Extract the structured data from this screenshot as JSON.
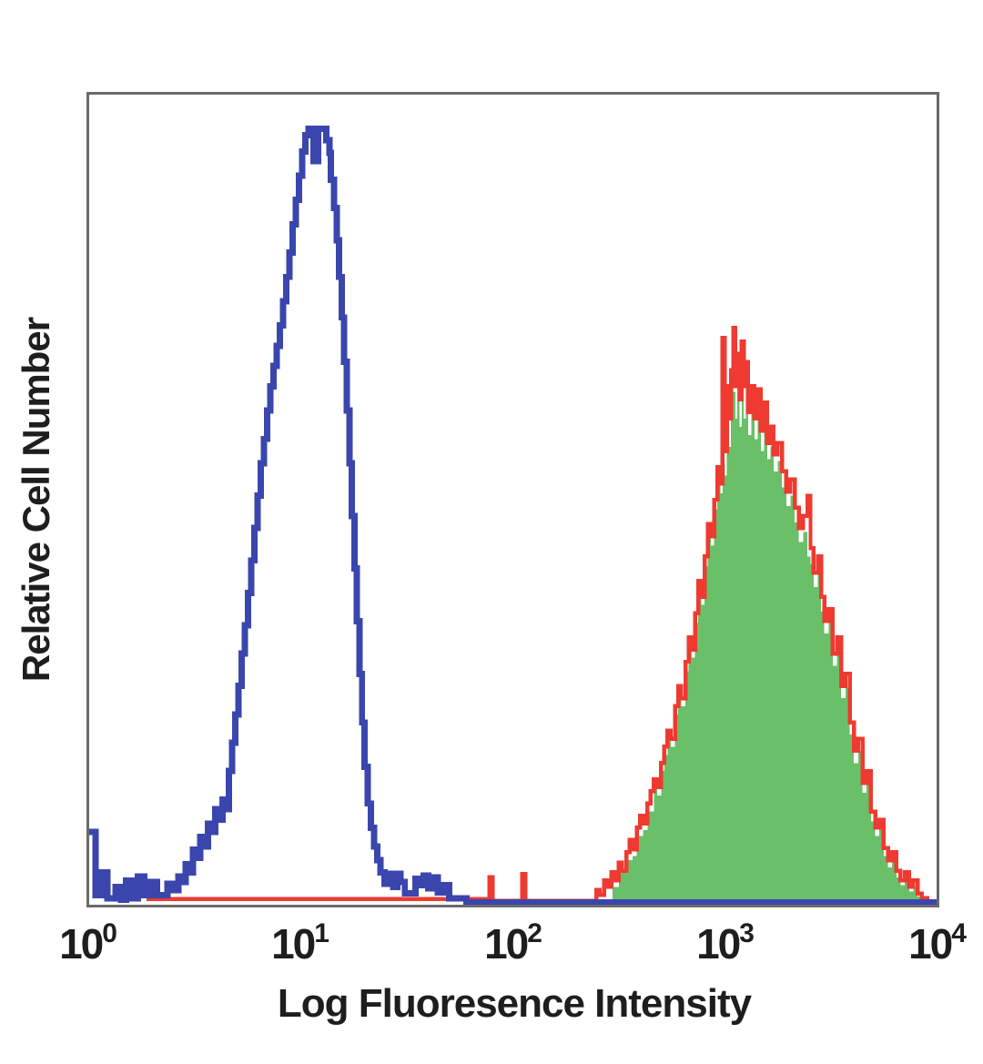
{
  "figure": {
    "background": "#ffffff",
    "frame_color": "#6a6a6a"
  },
  "chart_data": {
    "type": "area",
    "subtype": "flow-cytometry-overlaid-histograms",
    "title": "",
    "xlabel": "Log Fluoresence Intensity",
    "ylabel": "Relative Cell Number",
    "x_scale": "log10",
    "x_range_log": [
      0,
      4
    ],
    "y_range": [
      0,
      1
    ],
    "grid": false,
    "legend": "none",
    "x_ticks": [
      {
        "base": "10",
        "exp": "0",
        "log": 0
      },
      {
        "base": "10",
        "exp": "1",
        "log": 1
      },
      {
        "base": "10",
        "exp": "2",
        "log": 2
      },
      {
        "base": "10",
        "exp": "3",
        "log": 3
      },
      {
        "base": "10",
        "exp": "4",
        "log": 4
      }
    ],
    "series": [
      {
        "name": "positive-stain-fill",
        "style": "filled-step-area",
        "fill_color": "#6abf69",
        "peak_log_x": 3.06,
        "peak_height": 0.64,
        "points": [
          [
            2.44,
            0.003
          ],
          [
            2.47,
            0.022
          ],
          [
            2.5,
            0.04
          ],
          [
            2.535,
            0.055
          ],
          [
            2.565,
            0.06
          ],
          [
            2.585,
            0.085
          ],
          [
            2.615,
            0.092
          ],
          [
            2.635,
            0.115
          ],
          [
            2.665,
            0.145
          ],
          [
            2.68,
            0.135
          ],
          [
            2.7,
            0.165
          ],
          [
            2.715,
            0.185
          ],
          [
            2.73,
            0.205
          ],
          [
            2.745,
            0.195
          ],
          [
            2.765,
            0.235
          ],
          [
            2.78,
            0.258
          ],
          [
            2.795,
            0.245
          ],
          [
            2.815,
            0.288
          ],
          [
            2.83,
            0.318
          ],
          [
            2.845,
            0.305
          ],
          [
            2.86,
            0.348
          ],
          [
            2.875,
            0.388
          ],
          [
            2.89,
            0.37
          ],
          [
            2.905,
            0.418
          ],
          [
            2.92,
            0.458
          ],
          [
            2.935,
            0.443
          ],
          [
            2.95,
            0.488
          ],
          [
            2.965,
            0.528
          ],
          [
            2.98,
            0.508
          ],
          [
            2.99,
            0.545
          ],
          [
            3.0,
            0.53
          ],
          [
            3.01,
            0.585
          ],
          [
            3.02,
            0.565
          ],
          [
            3.03,
            0.61
          ],
          [
            3.04,
            0.633
          ],
          [
            3.05,
            0.6
          ],
          [
            3.06,
            0.64
          ],
          [
            3.07,
            0.59
          ],
          [
            3.08,
            0.635
          ],
          [
            3.09,
            0.6
          ],
          [
            3.1,
            0.625
          ],
          [
            3.11,
            0.58
          ],
          [
            3.125,
            0.61
          ],
          [
            3.14,
            0.575
          ],
          [
            3.155,
            0.605
          ],
          [
            3.17,
            0.56
          ],
          [
            3.185,
            0.595
          ],
          [
            3.2,
            0.55
          ],
          [
            3.215,
            0.565
          ],
          [
            3.23,
            0.535
          ],
          [
            3.25,
            0.548
          ],
          [
            3.27,
            0.515
          ],
          [
            3.29,
            0.492
          ],
          [
            3.31,
            0.505
          ],
          [
            3.33,
            0.472
          ],
          [
            3.35,
            0.448
          ],
          [
            3.37,
            0.46
          ],
          [
            3.39,
            0.43
          ],
          [
            3.405,
            0.42
          ],
          [
            3.42,
            0.392
          ],
          [
            3.44,
            0.408
          ],
          [
            3.455,
            0.362
          ],
          [
            3.47,
            0.335
          ],
          [
            3.49,
            0.348
          ],
          [
            3.51,
            0.295
          ],
          [
            3.53,
            0.312
          ],
          [
            3.55,
            0.255
          ],
          [
            3.57,
            0.268
          ],
          [
            3.59,
            0.21
          ],
          [
            3.61,
            0.175
          ],
          [
            3.63,
            0.19
          ],
          [
            3.65,
            0.138
          ],
          [
            3.67,
            0.15
          ],
          [
            3.69,
            0.103
          ],
          [
            3.71,
            0.085
          ],
          [
            3.73,
            0.093
          ],
          [
            3.75,
            0.06
          ],
          [
            3.77,
            0.046
          ],
          [
            3.79,
            0.055
          ],
          [
            3.81,
            0.034
          ],
          [
            3.83,
            0.024
          ],
          [
            3.85,
            0.032
          ],
          [
            3.87,
            0.016
          ],
          [
            3.89,
            0.022
          ],
          [
            3.91,
            0.01
          ],
          [
            3.93,
            0.005
          ],
          [
            3.95,
            0.001
          ]
        ]
      },
      {
        "name": "positive-stain-outline",
        "style": "open-step-line",
        "color": "#ee3a30",
        "line_width": 4.5,
        "peak_log_x": 3.04,
        "peak_height": 0.712,
        "points": [
          [
            0.27,
            0.007
          ],
          [
            1.88,
            0.007
          ],
          [
            1.89,
            0.034
          ],
          [
            1.905,
            0.034
          ],
          [
            1.905,
            0.005
          ],
          [
            2.035,
            0.005
          ],
          [
            2.045,
            0.038
          ],
          [
            2.06,
            0.038
          ],
          [
            2.06,
            0.005
          ],
          [
            2.38,
            0.005
          ],
          [
            2.395,
            0.018
          ],
          [
            2.41,
            0.012
          ],
          [
            2.43,
            0.03
          ],
          [
            2.445,
            0.022
          ],
          [
            2.465,
            0.04
          ],
          [
            2.48,
            0.03
          ],
          [
            2.5,
            0.052
          ],
          [
            2.515,
            0.042
          ],
          [
            2.535,
            0.065
          ],
          [
            2.55,
            0.08
          ],
          [
            2.565,
            0.068
          ],
          [
            2.585,
            0.095
          ],
          [
            2.6,
            0.11
          ],
          [
            2.615,
            0.1
          ],
          [
            2.635,
            0.125
          ],
          [
            2.65,
            0.14
          ],
          [
            2.665,
            0.155
          ],
          [
            2.68,
            0.145
          ],
          [
            2.7,
            0.175
          ],
          [
            2.715,
            0.195
          ],
          [
            2.73,
            0.215
          ],
          [
            2.745,
            0.205
          ],
          [
            2.765,
            0.245
          ],
          [
            2.78,
            0.27
          ],
          [
            2.795,
            0.255
          ],
          [
            2.815,
            0.3
          ],
          [
            2.83,
            0.33
          ],
          [
            2.845,
            0.315
          ],
          [
            2.86,
            0.36
          ],
          [
            2.875,
            0.4
          ],
          [
            2.89,
            0.38
          ],
          [
            2.905,
            0.43
          ],
          [
            2.92,
            0.47
          ],
          [
            2.935,
            0.455
          ],
          [
            2.95,
            0.5
          ],
          [
            2.965,
            0.54
          ],
          [
            2.98,
            0.52
          ],
          [
            2.99,
            0.7
          ],
          [
            3.0,
            0.56
          ],
          [
            3.01,
            0.64
          ],
          [
            3.02,
            0.6
          ],
          [
            3.03,
            0.66
          ],
          [
            3.04,
            0.712
          ],
          [
            3.05,
            0.64
          ],
          [
            3.06,
            0.68
          ],
          [
            3.07,
            0.624
          ],
          [
            3.08,
            0.695
          ],
          [
            3.09,
            0.64
          ],
          [
            3.1,
            0.67
          ],
          [
            3.11,
            0.608
          ],
          [
            3.125,
            0.64
          ],
          [
            3.14,
            0.6
          ],
          [
            3.155,
            0.636
          ],
          [
            3.17,
            0.585
          ],
          [
            3.185,
            0.62
          ],
          [
            3.2,
            0.57
          ],
          [
            3.215,
            0.59
          ],
          [
            3.23,
            0.556
          ],
          [
            3.25,
            0.57
          ],
          [
            3.27,
            0.535
          ],
          [
            3.29,
            0.51
          ],
          [
            3.31,
            0.525
          ],
          [
            3.33,
            0.49
          ],
          [
            3.35,
            0.465
          ],
          [
            3.37,
            0.48
          ],
          [
            3.39,
            0.505
          ],
          [
            3.405,
            0.44
          ],
          [
            3.42,
            0.41
          ],
          [
            3.44,
            0.43
          ],
          [
            3.455,
            0.38
          ],
          [
            3.47,
            0.35
          ],
          [
            3.49,
            0.365
          ],
          [
            3.51,
            0.31
          ],
          [
            3.53,
            0.33
          ],
          [
            3.55,
            0.27
          ],
          [
            3.57,
            0.285
          ],
          [
            3.59,
            0.225
          ],
          [
            3.61,
            0.19
          ],
          [
            3.63,
            0.205
          ],
          [
            3.65,
            0.15
          ],
          [
            3.67,
            0.165
          ],
          [
            3.69,
            0.115
          ],
          [
            3.71,
            0.095
          ],
          [
            3.73,
            0.105
          ],
          [
            3.75,
            0.07
          ],
          [
            3.77,
            0.055
          ],
          [
            3.79,
            0.065
          ],
          [
            3.81,
            0.042
          ],
          [
            3.83,
            0.03
          ],
          [
            3.85,
            0.04
          ],
          [
            3.87,
            0.022
          ],
          [
            3.89,
            0.03
          ],
          [
            3.91,
            0.014
          ],
          [
            3.93,
            0.008
          ],
          [
            3.955,
            0.003
          ]
        ]
      },
      {
        "name": "negative-control-outline",
        "style": "open-step-line",
        "color": "#3a46ad",
        "line_width": 7,
        "peak_log_x": 1.07,
        "peak_height": 0.958,
        "points": [
          [
            0.0,
            0.09
          ],
          [
            0.03,
            0.09
          ],
          [
            0.03,
            0.012
          ],
          [
            0.06,
            0.012
          ],
          [
            0.06,
            0.04
          ],
          [
            0.085,
            0.04
          ],
          [
            0.085,
            0.008
          ],
          [
            0.125,
            0.008
          ],
          [
            0.125,
            0.022
          ],
          [
            0.15,
            0.022
          ],
          [
            0.15,
            0.006
          ],
          [
            0.175,
            0.03
          ],
          [
            0.2,
            0.03
          ],
          [
            0.2,
            0.008
          ],
          [
            0.23,
            0.008
          ],
          [
            0.23,
            0.035
          ],
          [
            0.26,
            0.035
          ],
          [
            0.26,
            0.012
          ],
          [
            0.29,
            0.028
          ],
          [
            0.32,
            0.028
          ],
          [
            0.32,
            0.012
          ],
          [
            0.35,
            0.012
          ],
          [
            0.37,
            0.026
          ],
          [
            0.395,
            0.018
          ],
          [
            0.42,
            0.035
          ],
          [
            0.44,
            0.028
          ],
          [
            0.455,
            0.05
          ],
          [
            0.47,
            0.04
          ],
          [
            0.49,
            0.068
          ],
          [
            0.505,
            0.058
          ],
          [
            0.525,
            0.084
          ],
          [
            0.54,
            0.072
          ],
          [
            0.56,
            0.1
          ],
          [
            0.575,
            0.09
          ],
          [
            0.595,
            0.118
          ],
          [
            0.61,
            0.105
          ],
          [
            0.63,
            0.13
          ],
          [
            0.645,
            0.118
          ],
          [
            0.66,
            0.165
          ],
          [
            0.675,
            0.2
          ],
          [
            0.69,
            0.235
          ],
          [
            0.705,
            0.27
          ],
          [
            0.72,
            0.31
          ],
          [
            0.735,
            0.345
          ],
          [
            0.75,
            0.385
          ],
          [
            0.765,
            0.425
          ],
          [
            0.78,
            0.465
          ],
          [
            0.795,
            0.505
          ],
          [
            0.81,
            0.545
          ],
          [
            0.825,
            0.575
          ],
          [
            0.84,
            0.61
          ],
          [
            0.855,
            0.64
          ],
          [
            0.87,
            0.665
          ],
          [
            0.885,
            0.69
          ],
          [
            0.9,
            0.715
          ],
          [
            0.915,
            0.745
          ],
          [
            0.93,
            0.775
          ],
          [
            0.945,
            0.805
          ],
          [
            0.96,
            0.84
          ],
          [
            0.975,
            0.87
          ],
          [
            0.99,
            0.9
          ],
          [
            1.005,
            0.93
          ],
          [
            1.02,
            0.95
          ],
          [
            1.035,
            0.958
          ],
          [
            1.06,
            0.958
          ],
          [
            1.06,
            0.918
          ],
          [
            1.08,
            0.918
          ],
          [
            1.08,
            0.958
          ],
          [
            1.105,
            0.958
          ],
          [
            1.12,
            0.944
          ],
          [
            1.135,
            0.928
          ],
          [
            1.14,
            0.895
          ],
          [
            1.155,
            0.86
          ],
          [
            1.168,
            0.82
          ],
          [
            1.18,
            0.775
          ],
          [
            1.192,
            0.725
          ],
          [
            1.204,
            0.67
          ],
          [
            1.216,
            0.61
          ],
          [
            1.228,
            0.545
          ],
          [
            1.24,
            0.48
          ],
          [
            1.252,
            0.415
          ],
          [
            1.264,
            0.35
          ],
          [
            1.276,
            0.285
          ],
          [
            1.288,
            0.225
          ],
          [
            1.3,
            0.17
          ],
          [
            1.315,
            0.125
          ],
          [
            1.33,
            0.095
          ],
          [
            1.345,
            0.072
          ],
          [
            1.36,
            0.055
          ],
          [
            1.375,
            0.04
          ],
          [
            1.395,
            0.026
          ],
          [
            1.415,
            0.038
          ],
          [
            1.435,
            0.022
          ],
          [
            1.455,
            0.038
          ],
          [
            1.47,
            0.028
          ],
          [
            1.49,
            0.014
          ],
          [
            1.52,
            0.014
          ],
          [
            1.54,
            0.032
          ],
          [
            1.56,
            0.024
          ],
          [
            1.58,
            0.036
          ],
          [
            1.6,
            0.02
          ],
          [
            1.62,
            0.034
          ],
          [
            1.645,
            0.015
          ],
          [
            1.67,
            0.024
          ],
          [
            1.7,
            0.008
          ],
          [
            1.74,
            0.008
          ],
          [
            1.78,
            0.003
          ],
          [
            4.0,
            0.003
          ]
        ]
      }
    ]
  }
}
